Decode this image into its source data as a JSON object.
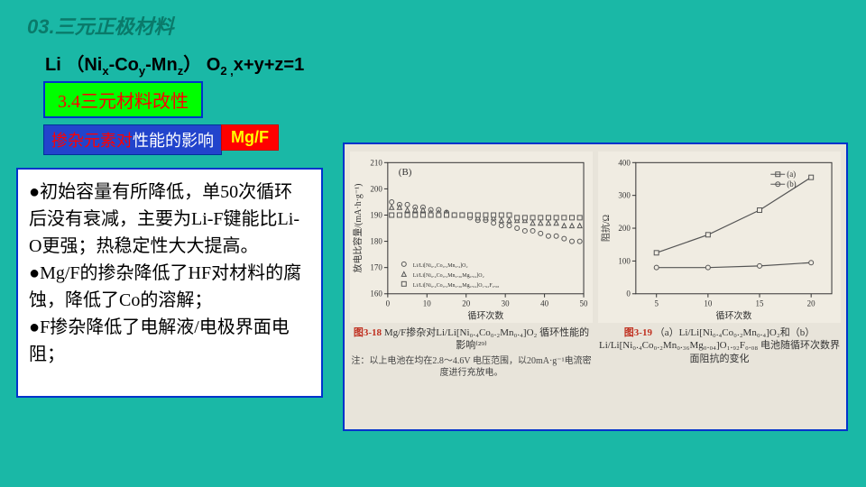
{
  "pageTitle": "03.三元正极材料",
  "formula": "Li （Niₓ-Co_y-Mn_z） O₂ ,x+y+z=1",
  "section": "3.4三元材料改性",
  "influence": {
    "red": "掺杂元素对",
    "white": "性能的影响"
  },
  "mgf": "Mg/F",
  "bullets": [
    "初始容量有所降低，单50次循环后没有衰减，主要为Li-F键能比Li-O更强；热稳定性大大提高。",
    "Mg/F的掺杂降低了HF对材料的腐蚀，降低了Co的溶解；",
    "F掺杂降低了电解液/电极界面电阻；"
  ],
  "chart1": {
    "type": "scatter",
    "label": "(B)",
    "xlabel": "循环次数",
    "ylabel": "放电比容量/(mA·h·g⁻¹)",
    "xlim": [
      0,
      50
    ],
    "xticks": [
      0,
      10,
      20,
      30,
      40,
      50
    ],
    "ylim": [
      160,
      210
    ],
    "yticks": [
      160,
      170,
      180,
      190,
      200,
      210
    ],
    "bg": "#f0ece2",
    "grid": "#c8c4b8",
    "line": "#333",
    "series": [
      {
        "name": "Li/Li[Ni₀.₄Co₀.₂Mn₀.₄]O₂",
        "marker": "circle",
        "color": "#555",
        "x": [
          1,
          3,
          5,
          7,
          9,
          11,
          13,
          15,
          17,
          19,
          21,
          23,
          25,
          27,
          29,
          31,
          33,
          35,
          37,
          39,
          41,
          43,
          45,
          47,
          49
        ],
        "y": [
          195,
          194,
          194,
          193,
          193,
          192,
          192,
          191,
          190,
          190,
          189,
          188,
          188,
          187,
          186,
          186,
          185,
          184,
          184,
          183,
          182,
          182,
          181,
          180,
          180
        ]
      },
      {
        "name": "Li/Li[Ni₀.₄Co₀.₂Mn₀.₃₆Mg₀.₀₄]O₂",
        "marker": "triangle",
        "color": "#555",
        "x": [
          1,
          3,
          5,
          7,
          9,
          11,
          13,
          15,
          17,
          19,
          21,
          23,
          25,
          27,
          29,
          31,
          33,
          35,
          37,
          39,
          41,
          43,
          45,
          47,
          49
        ],
        "y": [
          193,
          193,
          192,
          192,
          192,
          191,
          191,
          191,
          190,
          190,
          190,
          189,
          189,
          189,
          188,
          188,
          188,
          188,
          187,
          187,
          187,
          187,
          186,
          186,
          186
        ]
      },
      {
        "name": "Li/Li[Ni₀.₄Co₀.₂Mn₀.₃₆Mg₀.₀₄]O₁.₉₂F₀.₀₈",
        "marker": "square",
        "color": "#555",
        "x": [
          1,
          3,
          5,
          7,
          9,
          11,
          13,
          15,
          17,
          19,
          21,
          23,
          25,
          27,
          29,
          31,
          33,
          35,
          37,
          39,
          41,
          43,
          45,
          47,
          49
        ],
        "y": [
          190,
          190,
          190,
          190,
          190,
          190,
          190,
          190,
          190,
          190,
          190,
          190,
          190,
          190,
          190,
          190,
          189,
          189,
          189,
          189,
          189,
          189,
          189,
          189,
          189
        ]
      }
    ],
    "caption_red": "图3-18",
    "caption": "Mg/F掺杂对Li/Li[Ni₀.₄Co₀.₂Mn₀.₄]O₂ 循环性能的影响⁽²⁹⁾",
    "note": "注：以上电池在均在2.8～4.6V 电压范围，以20mA·g⁻¹电流密度进行充放电。"
  },
  "chart2": {
    "type": "line",
    "xlabel": "循环次数",
    "ylabel": "阻抗/Ω",
    "xlim": [
      3,
      22
    ],
    "xticks": [
      5,
      10,
      15,
      20
    ],
    "ylim": [
      0,
      400
    ],
    "yticks": [
      0,
      100,
      200,
      300,
      400
    ],
    "bg": "#f0ece2",
    "grid": "#c8c4b8",
    "line": "#333",
    "series": [
      {
        "name": "(a)",
        "marker": "square",
        "color": "#555",
        "x": [
          5,
          10,
          15,
          20
        ],
        "y": [
          125,
          180,
          255,
          355
        ]
      },
      {
        "name": "(b)",
        "marker": "circle",
        "color": "#555",
        "x": [
          5,
          10,
          15,
          20
        ],
        "y": [
          80,
          80,
          85,
          95
        ]
      }
    ],
    "caption_red": "图3-19",
    "caption": "（a）Li/Li[Ni₀.₄Co₀.₂Mn₀.₄]O₂和（b）Li/Li[Ni₀.₄Co₀.₂Mn₀.₃₆Mg₀.₀₄]O₁.₉₂F₀.₀₈ 电池随循环次数界面阻抗的变化"
  }
}
